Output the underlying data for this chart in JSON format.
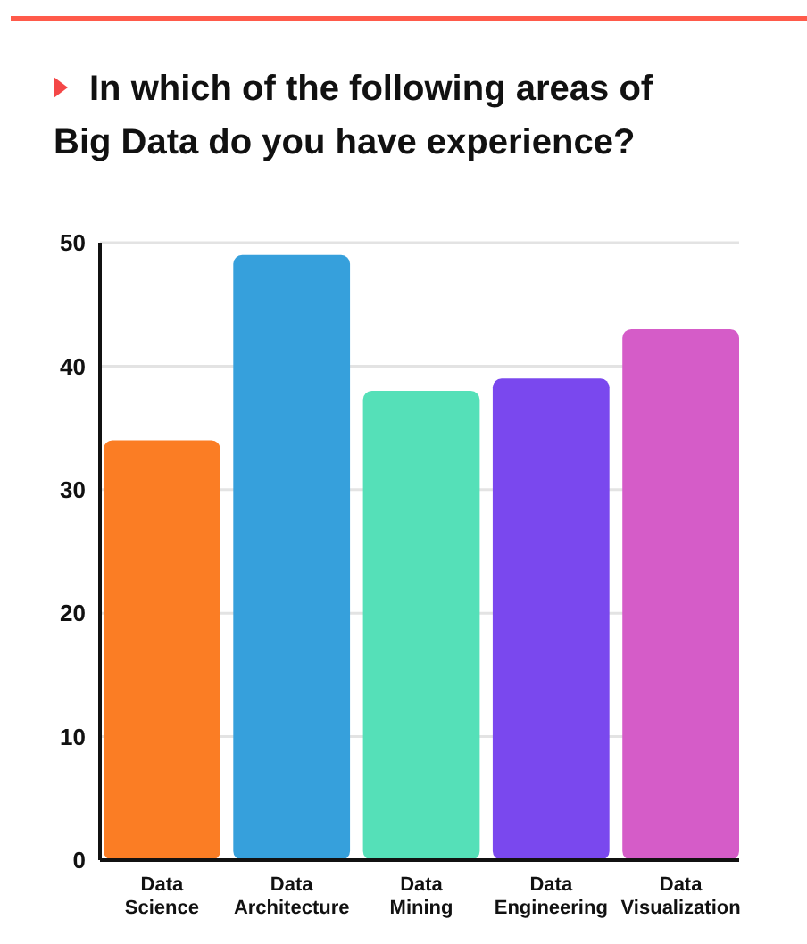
{
  "chart_data": {
    "type": "bar",
    "title": "In which of the following areas of Big Data do you have experience?",
    "categories": [
      "Data Science",
      "Data Architecture",
      "Data Mining",
      "Data Engineering",
      "Data Visualization"
    ],
    "values": [
      34,
      49,
      38,
      39,
      43
    ],
    "colors": [
      "#fb7d24",
      "#36a0dc",
      "#55e0b8",
      "#7a48ee",
      "#d55cc8"
    ],
    "ylim": [
      0,
      50
    ],
    "yticks": [
      0,
      10,
      20,
      30,
      40,
      50
    ],
    "grid": "y"
  }
}
